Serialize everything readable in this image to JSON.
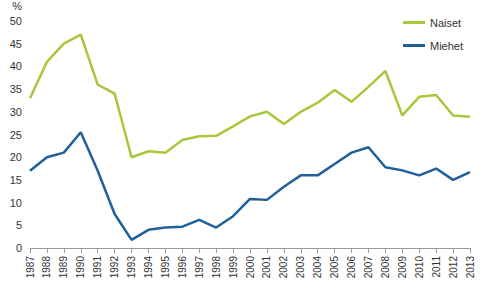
{
  "chart_data": {
    "type": "line",
    "y_label": "%",
    "categories": [
      "1987",
      "1988",
      "1989",
      "1990",
      "1991",
      "1992",
      "1993",
      "1994",
      "1995",
      "1996",
      "1997",
      "1998",
      "1999",
      "2000",
      "2001",
      "2002",
      "2003",
      "2004",
      "2005",
      "2006",
      "2007",
      "2008",
      "2009",
      "2010",
      "2011",
      "2012",
      "2013"
    ],
    "series": [
      {
        "name": "Naiset",
        "color": "#a8c83c",
        "values": [
          33,
          41,
          45,
          47,
          36,
          34,
          20,
          21.3,
          21,
          23.8,
          24.6,
          24.7,
          26.8,
          29,
          30,
          27.3,
          30,
          32,
          34.8,
          32.2,
          35.5,
          39,
          29.2,
          33.3,
          33.7,
          29.2,
          28.9
        ]
      },
      {
        "name": "Miehet",
        "color": "#1f5f9a",
        "values": [
          17,
          20,
          21,
          25.5,
          17,
          7.5,
          1.8,
          4,
          4.5,
          4.7,
          6.2,
          4.5,
          7,
          10.8,
          10.6,
          13.5,
          16,
          16,
          18.5,
          21,
          22.2,
          17.8,
          17.1,
          16,
          17.5,
          15,
          16.7
        ]
      }
    ],
    "ylim": [
      0,
      50
    ],
    "yticks": [
      0,
      5,
      10,
      15,
      20,
      25,
      30,
      35,
      40,
      45,
      50
    ],
    "grid": false,
    "legend": "top-right"
  }
}
